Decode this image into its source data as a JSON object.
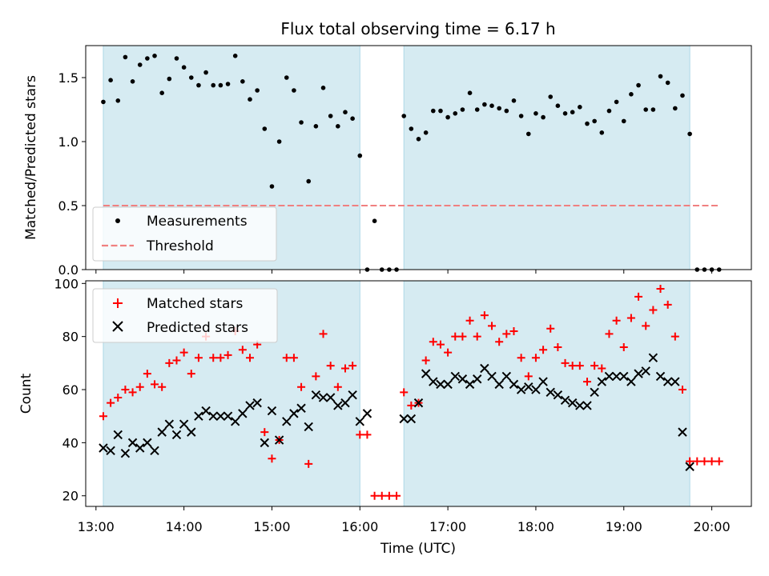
{
  "chart_data": [
    {
      "type": "scatter",
      "title": "Flux total observing time = 6.17 h",
      "xlabel": "",
      "ylabel": "Matched/Predicted stars",
      "xlim": [
        "12:53",
        "20:27"
      ],
      "ylim": [
        0,
        1.75
      ],
      "yticks": [
        0.0,
        0.5,
        1.0,
        1.5
      ],
      "ytick_labels": [
        "0.0",
        "0.5",
        "1.0",
        "1.5"
      ],
      "shaded_intervals": [
        [
          "13:05",
          "16:00"
        ],
        [
          "16:30",
          "19:45"
        ]
      ],
      "shade_color": "#add8e6",
      "legend_position": "lower-left",
      "series": [
        {
          "name": "Measurements",
          "marker": "dot",
          "color": "#000000",
          "x": [
            "13:05",
            "13:10",
            "13:15",
            "13:20",
            "13:25",
            "13:30",
            "13:35",
            "13:40",
            "13:45",
            "13:50",
            "13:55",
            "14:00",
            "14:05",
            "14:10",
            "14:15",
            "14:20",
            "14:25",
            "14:30",
            "14:35",
            "14:40",
            "14:45",
            "14:50",
            "14:55",
            "15:00",
            "15:05",
            "15:10",
            "15:15",
            "15:20",
            "15:25",
            "15:30",
            "15:35",
            "15:40",
            "15:45",
            "15:50",
            "15:55",
            "16:00",
            "16:05",
            "16:10",
            "16:15",
            "16:20",
            "16:25",
            "16:30",
            "16:35",
            "16:40",
            "16:45",
            "16:50",
            "16:55",
            "17:00",
            "17:05",
            "17:10",
            "17:15",
            "17:20",
            "17:25",
            "17:30",
            "17:35",
            "17:40",
            "17:45",
            "17:50",
            "17:55",
            "18:00",
            "18:05",
            "18:10",
            "18:15",
            "18:20",
            "18:25",
            "18:30",
            "18:35",
            "18:40",
            "18:45",
            "18:50",
            "18:55",
            "19:00",
            "19:05",
            "19:10",
            "19:15",
            "19:20",
            "19:25",
            "19:30",
            "19:35",
            "19:40",
            "19:45",
            "19:50",
            "19:55",
            "20:00",
            "20:05"
          ],
          "y": [
            1.31,
            1.48,
            1.32,
            1.66,
            1.47,
            1.6,
            1.65,
            1.67,
            1.38,
            1.49,
            1.65,
            1.58,
            1.5,
            1.44,
            1.54,
            1.44,
            1.44,
            1.45,
            1.67,
            1.47,
            1.33,
            1.4,
            1.1,
            0.65,
            1.0,
            1.5,
            1.4,
            1.15,
            0.69,
            1.12,
            1.42,
            1.2,
            1.12,
            1.23,
            1.18,
            0.89,
            0.0,
            0.38,
            0.0,
            0.0,
            0.0,
            1.2,
            1.1,
            1.02,
            1.07,
            1.24,
            1.24,
            1.19,
            1.22,
            1.25,
            1.38,
            1.25,
            1.29,
            1.28,
            1.26,
            1.24,
            1.32,
            1.2,
            1.06,
            1.22,
            1.19,
            1.35,
            1.28,
            1.22,
            1.23,
            1.27,
            1.14,
            1.16,
            1.07,
            1.24,
            1.31,
            1.16,
            1.37,
            1.44,
            1.25,
            1.25,
            1.51,
            1.46,
            1.26,
            1.36,
            1.06,
            0.0,
            0.0,
            0.0,
            0.0
          ]
        },
        {
          "name": "Threshold",
          "marker": "dashed-line",
          "color": "#f08080",
          "x": [
            "13:05",
            "20:05"
          ],
          "y": [
            0.5,
            0.5
          ]
        }
      ]
    },
    {
      "type": "scatter",
      "title": "",
      "xlabel": "Time (UTC)",
      "ylabel": "Count",
      "xlim": [
        "12:53",
        "20:27"
      ],
      "ylim": [
        16,
        101
      ],
      "xticks": [
        "13:00",
        "14:00",
        "15:00",
        "16:00",
        "17:00",
        "18:00",
        "19:00",
        "20:00"
      ],
      "yticks": [
        20,
        40,
        60,
        80,
        100
      ],
      "ytick_labels": [
        "20",
        "40",
        "60",
        "80",
        "100"
      ],
      "shaded_intervals": [
        [
          "13:05",
          "16:00"
        ],
        [
          "16:30",
          "19:45"
        ]
      ],
      "shade_color": "#add8e6",
      "legend_position": "upper-left",
      "series": [
        {
          "name": "Matched stars",
          "marker": "plus",
          "color": "#ff0000",
          "x": [
            "13:05",
            "13:10",
            "13:15",
            "13:20",
            "13:25",
            "13:30",
            "13:35",
            "13:40",
            "13:45",
            "13:50",
            "13:55",
            "14:00",
            "14:05",
            "14:10",
            "14:15",
            "14:20",
            "14:25",
            "14:30",
            "14:35",
            "14:40",
            "14:45",
            "14:50",
            "14:55",
            "15:00",
            "15:05",
            "15:10",
            "15:15",
            "15:20",
            "15:25",
            "15:30",
            "15:35",
            "15:40",
            "15:45",
            "15:50",
            "15:55",
            "16:00",
            "16:05",
            "16:10",
            "16:15",
            "16:20",
            "16:25",
            "16:30",
            "16:35",
            "16:40",
            "16:45",
            "16:50",
            "16:55",
            "17:00",
            "17:05",
            "17:10",
            "17:15",
            "17:20",
            "17:25",
            "17:30",
            "17:35",
            "17:40",
            "17:45",
            "17:50",
            "17:55",
            "18:00",
            "18:05",
            "18:10",
            "18:15",
            "18:20",
            "18:25",
            "18:30",
            "18:35",
            "18:40",
            "18:45",
            "18:50",
            "18:55",
            "19:00",
            "19:05",
            "19:10",
            "19:15",
            "19:20",
            "19:25",
            "19:30",
            "19:35",
            "19:40",
            "19:45",
            "19:50",
            "19:55",
            "20:00",
            "20:05"
          ],
          "y": [
            50,
            55,
            57,
            60,
            59,
            61,
            66,
            62,
            61,
            70,
            71,
            74,
            66,
            72,
            80,
            72,
            72,
            73,
            82,
            75,
            72,
            77,
            44,
            34,
            41,
            72,
            72,
            61,
            32,
            65,
            81,
            69,
            61,
            68,
            69,
            43,
            43,
            20,
            20,
            20,
            20,
            59,
            54,
            55,
            71,
            78,
            77,
            74,
            80,
            80,
            86,
            80,
            88,
            84,
            78,
            81,
            82,
            72,
            65,
            72,
            75,
            83,
            76,
            70,
            69,
            69,
            63,
            69,
            68,
            81,
            86,
            76,
            87,
            95,
            84,
            90,
            98,
            92,
            80,
            60,
            33,
            33,
            33,
            33,
            33
          ]
        },
        {
          "name": "Predicted stars",
          "marker": "cross",
          "color": "#000000",
          "x": [
            "13:05",
            "13:10",
            "13:15",
            "13:20",
            "13:25",
            "13:30",
            "13:35",
            "13:40",
            "13:45",
            "13:50",
            "13:55",
            "14:00",
            "14:05",
            "14:10",
            "14:15",
            "14:20",
            "14:25",
            "14:30",
            "14:35",
            "14:40",
            "14:45",
            "14:50",
            "14:55",
            "15:00",
            "15:05",
            "15:10",
            "15:15",
            "15:20",
            "15:25",
            "15:30",
            "15:35",
            "15:40",
            "15:45",
            "15:50",
            "15:55",
            "16:00",
            "16:05",
            "16:30",
            "16:35",
            "16:40",
            "16:45",
            "16:50",
            "16:55",
            "17:00",
            "17:05",
            "17:10",
            "17:15",
            "17:20",
            "17:25",
            "17:30",
            "17:35",
            "17:40",
            "17:45",
            "17:50",
            "17:55",
            "18:00",
            "18:05",
            "18:10",
            "18:15",
            "18:20",
            "18:25",
            "18:30",
            "18:35",
            "18:40",
            "18:45",
            "18:50",
            "18:55",
            "19:00",
            "19:05",
            "19:10",
            "19:15",
            "19:20",
            "19:25",
            "19:30",
            "19:35",
            "19:40",
            "19:45"
          ],
          "y": [
            38,
            37,
            43,
            36,
            40,
            38,
            40,
            37,
            44,
            47,
            43,
            47,
            44,
            50,
            52,
            50,
            50,
            50,
            48,
            51,
            54,
            55,
            40,
            52,
            41,
            48,
            51,
            53,
            46,
            58,
            57,
            57,
            54,
            55,
            58,
            48,
            51,
            49,
            49,
            55,
            66,
            63,
            62,
            62,
            65,
            64,
            62,
            64,
            68,
            65,
            62,
            65,
            62,
            60,
            61,
            60,
            63,
            59,
            58,
            56,
            55,
            54,
            54,
            59,
            63,
            65,
            65,
            65,
            63,
            66,
            67,
            72,
            65,
            63,
            63,
            44,
            31
          ]
        }
      ]
    }
  ]
}
